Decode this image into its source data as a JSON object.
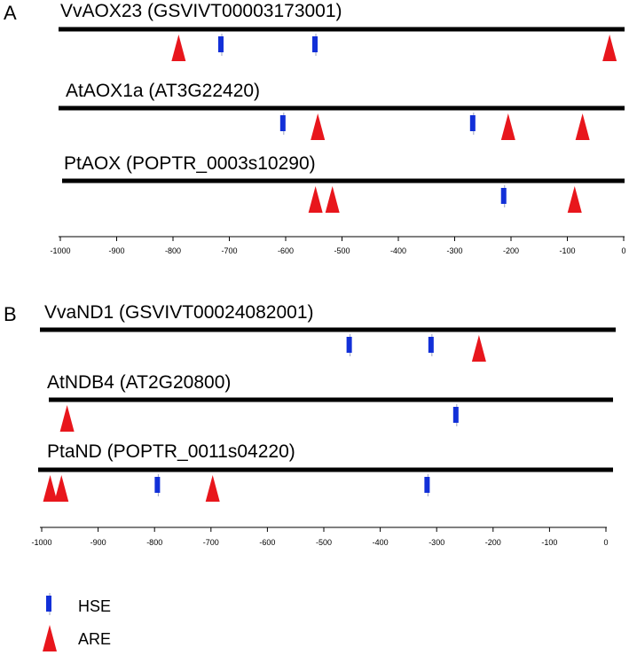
{
  "colors": {
    "hse": "#1230d8",
    "are": "#e8161c",
    "line": "#000000"
  },
  "icons": {
    "hse": "blue-bar-icon",
    "are": "red-triangle-icon"
  },
  "panels": [
    {
      "letter": "A",
      "axis_ticks": [
        "-1000",
        "-900",
        "-800",
        "-700",
        "-600",
        "-500",
        "-400",
        "-300",
        "-200",
        "-100",
        "0"
      ],
      "genes": [
        {
          "label": "VvAOX23 (GSVIVT00003173001)",
          "elements": [
            {
              "type": "ARE",
              "pos": -790
            },
            {
              "type": "HSE",
              "pos": -715
            },
            {
              "type": "HSE",
              "pos": -548
            },
            {
              "type": "ARE",
              "pos": -25
            }
          ]
        },
        {
          "label": "AtAOX1a (AT3G22420)",
          "elements": [
            {
              "type": "HSE",
              "pos": -605
            },
            {
              "type": "ARE",
              "pos": -543
            },
            {
              "type": "HSE",
              "pos": -268
            },
            {
              "type": "ARE",
              "pos": -205
            },
            {
              "type": "ARE",
              "pos": -73
            }
          ]
        },
        {
          "label": "PtAOX (POPTR_0003s10290)",
          "elements": [
            {
              "type": "ARE",
              "pos": -547
            },
            {
              "type": "ARE",
              "pos": -517
            },
            {
              "type": "HSE",
              "pos": -213
            },
            {
              "type": "ARE",
              "pos": -87
            }
          ]
        }
      ]
    },
    {
      "letter": "B",
      "axis_ticks": [
        "-1000",
        "-900",
        "-800",
        "-700",
        "-600",
        "-500",
        "-400",
        "-300",
        "-200",
        "-100",
        "0"
      ],
      "genes": [
        {
          "label": "VvaND1 (GSVIVT00024082001)",
          "elements": [
            {
              "type": "HSE",
              "pos": -455
            },
            {
              "type": "HSE",
              "pos": -310
            },
            {
              "type": "ARE",
              "pos": -225
            }
          ]
        },
        {
          "label": "AtNDB4 (AT2G20800)",
          "elements": [
            {
              "type": "ARE",
              "pos": -955
            },
            {
              "type": "HSE",
              "pos": -266
            }
          ]
        },
        {
          "label": "PtaND (POPTR_0011s04220)",
          "elements": [
            {
              "type": "ARE",
              "pos": -985
            },
            {
              "type": "ARE",
              "pos": -965
            },
            {
              "type": "HSE",
              "pos": -795
            },
            {
              "type": "ARE",
              "pos": -697
            },
            {
              "type": "HSE",
              "pos": -317
            }
          ]
        }
      ]
    }
  ],
  "legend": [
    {
      "type": "HSE",
      "label": "HSE"
    },
    {
      "type": "ARE",
      "label": "ARE"
    }
  ]
}
